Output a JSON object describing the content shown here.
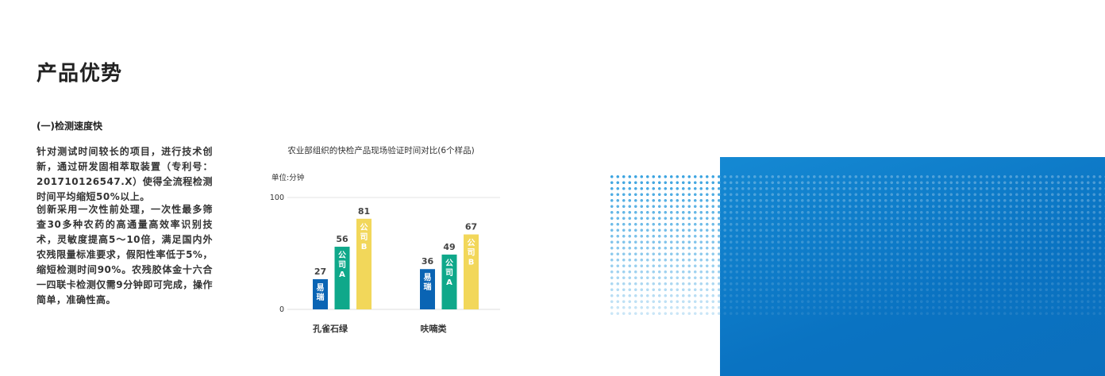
{
  "page": {
    "title": "产品优势",
    "section_heading": "(一)检测速度快",
    "paragraphs": [
      "针对测试时间较长的项目，进行技术创新，通过研发固相萃取装置（专利号：201710126547.X）使得全流程检测时间平均缩短50%以上。",
      "创新采用一次性前处理，一次性最多筛查30多种农药的高通量高效率识别技术，灵敏度提高5～10倍，满足国内外农残限量标准要求，假阳性率低于5%，缩短检测时间90%。农残胶体金十六合一四联卡检测仅需9分钟即可完成，操作简单，准确性高。"
    ]
  },
  "chart_data": {
    "type": "bar",
    "title": "农业部组织的快检产品现场验证时间对比(6个样品)",
    "ylabel": "单位:分钟",
    "xlabel": "",
    "ylim": [
      0,
      100
    ],
    "yticks": [
      "0",
      "100"
    ],
    "categories": [
      "孔雀石绿",
      "呋喃类"
    ],
    "series": [
      {
        "name": "易瑞",
        "label_chars": [
          "易",
          "瑞"
        ],
        "color": "#0a64b4",
        "values": [
          27,
          36
        ]
      },
      {
        "name": "公司A",
        "label_chars": [
          "公",
          "司",
          "A"
        ],
        "color": "#0fa88a",
        "values": [
          56,
          49
        ]
      },
      {
        "name": "公司B",
        "label_chars": [
          "公",
          "司",
          "B"
        ],
        "color": "#f2d75a",
        "values": [
          81,
          67
        ]
      }
    ],
    "grid": true,
    "legend": "none"
  },
  "colors": {
    "panel_blue": "#0a73c2",
    "dots": "#3aa3e0"
  }
}
